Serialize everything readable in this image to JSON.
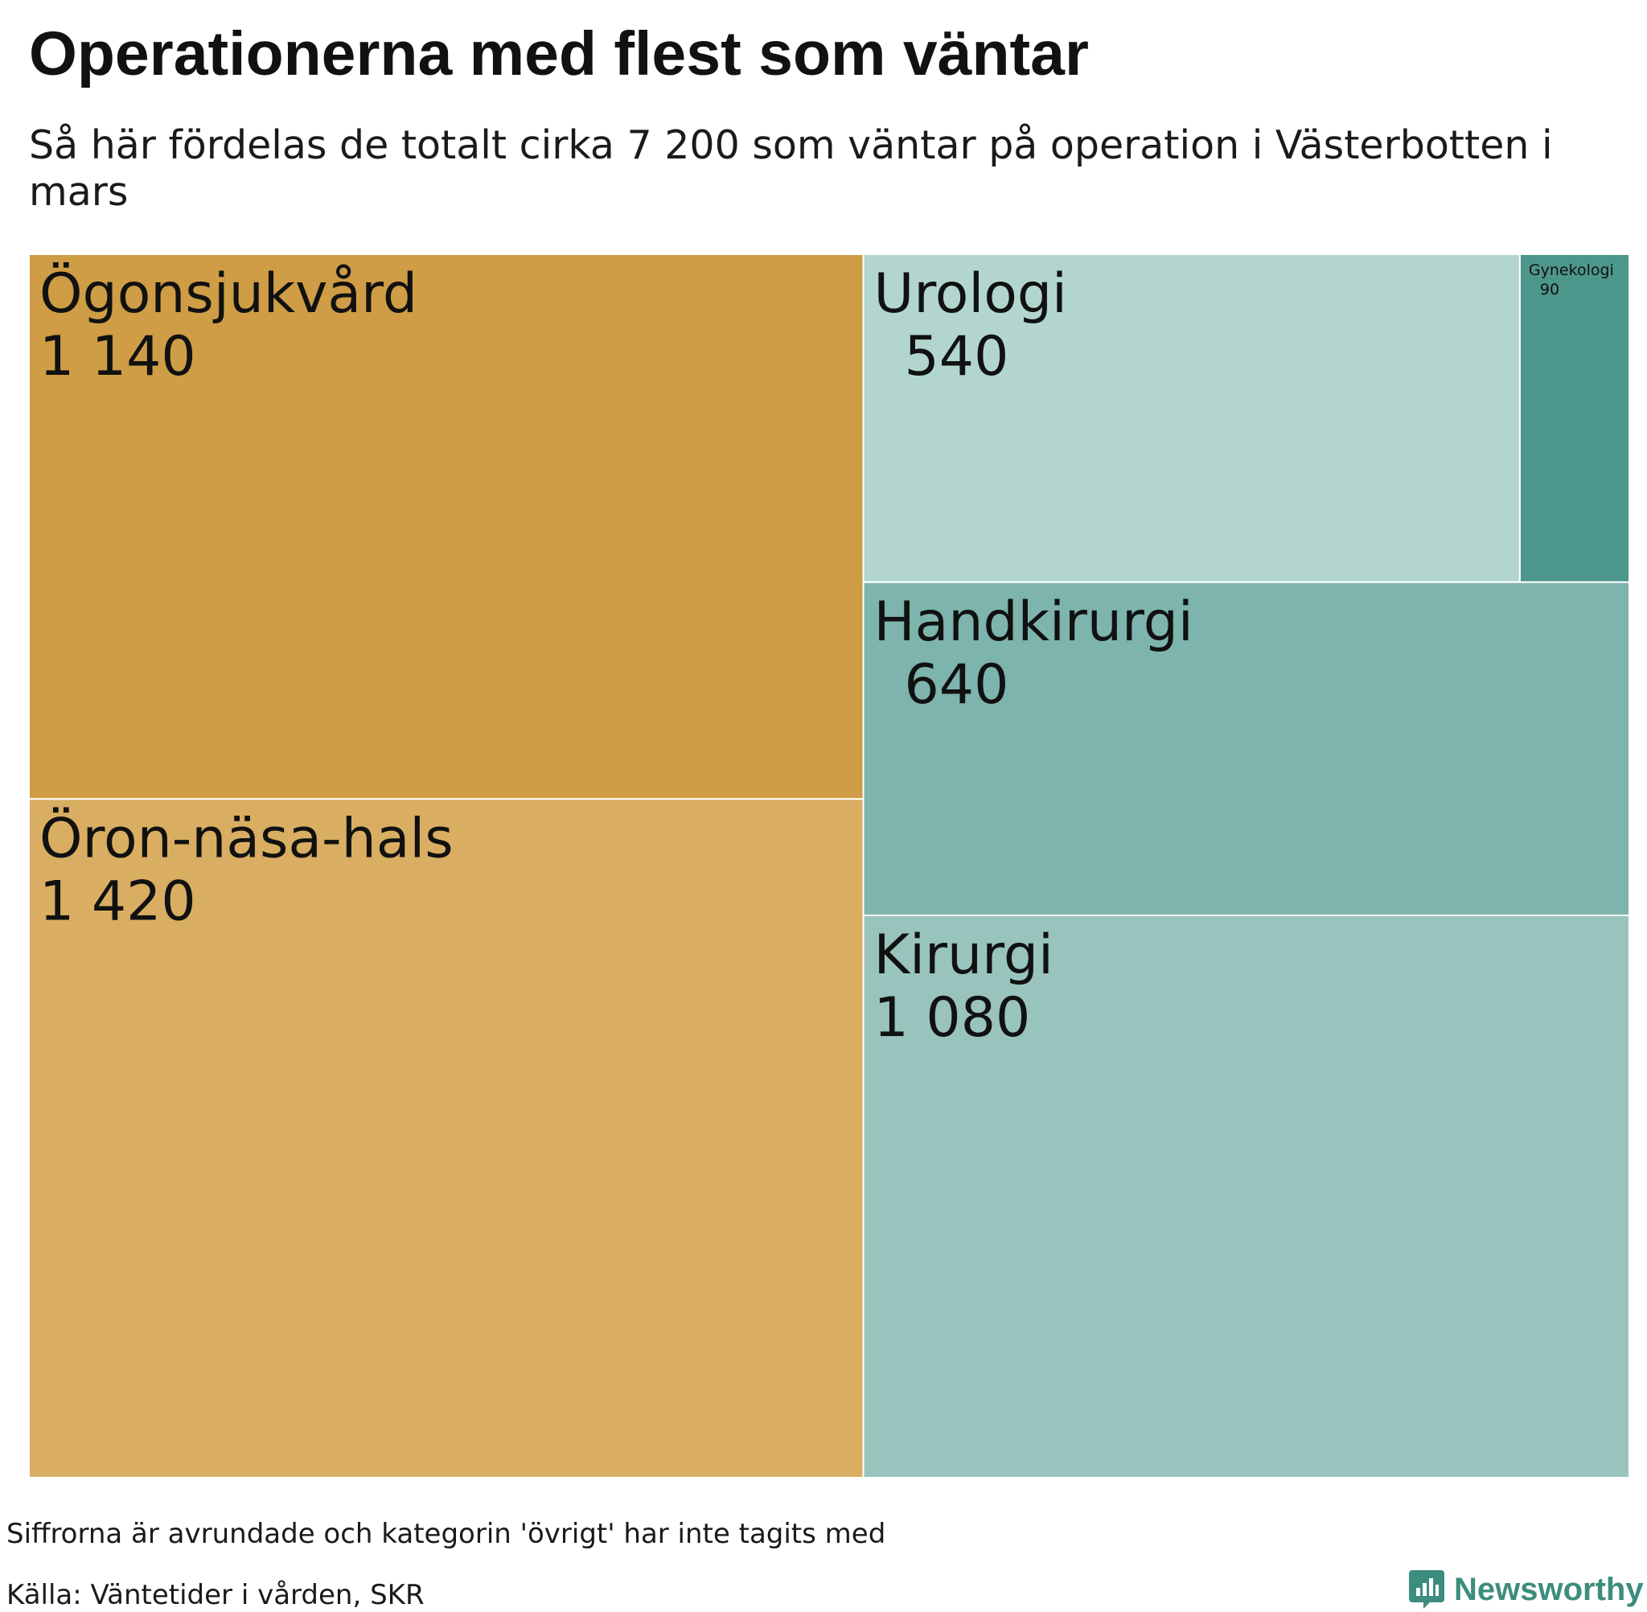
{
  "header": {
    "title": "Operationerna med flest som väntar",
    "subtitle": "Så här fördelas de totalt cirka 7 200 som väntar på operation i Västerbotten i mars"
  },
  "chart_data": {
    "type": "treemap",
    "title": "Operationerna med flest som väntar",
    "subtitle": "Så här fördelas de totalt cirka 7 200 som väntar på operation i Västerbotten i mars",
    "unit": "antal som väntar",
    "groups": [
      {
        "color": "#d9ae62",
        "items": [
          {
            "label": "Ögonsjukvård",
            "value": 1140,
            "value_text": "1 140",
            "color": "#cf9d45"
          },
          {
            "label": "Öron-näsa-hals",
            "value": 1420,
            "value_text": "1 420",
            "color": "#d9ae62"
          }
        ]
      },
      {
        "color": "#99c4bd",
        "items": [
          {
            "label": "Urologi",
            "value": 540,
            "value_text": "540",
            "color": "#b2d6cf"
          },
          {
            "label": "Gynekologi",
            "value": 90,
            "value_text": "90",
            "color": "#4c968b"
          },
          {
            "label": "Handkirurgi",
            "value": 640,
            "value_text": "640",
            "color": "#7db4ad"
          },
          {
            "label": "Kirurgi",
            "value": 1080,
            "value_text": "1 080",
            "color": "#99c4bd"
          }
        ]
      }
    ]
  },
  "footer": {
    "note": "Siffrorna är avrundade och kategorin 'övrigt' har inte tagits med",
    "source": "Källa: Väntetider i vården, SKR",
    "brand": "Newsworthy",
    "brand_color": "#3d8d7e"
  }
}
